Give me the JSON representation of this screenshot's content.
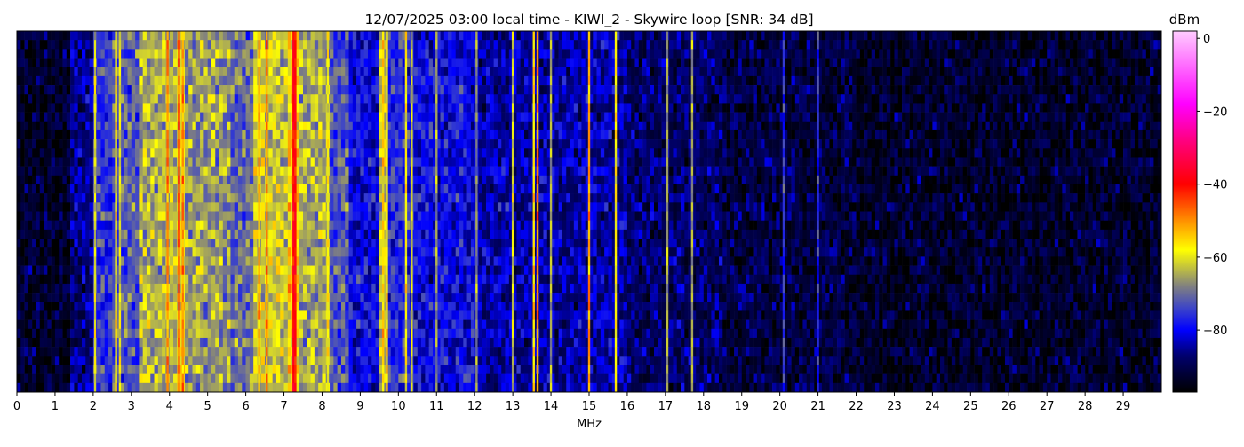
{
  "chart_data": {
    "type": "heatmap",
    "title": "12/07/2025 03:00 local time - KIWI_2 - Skywire loop [SNR: 34 dB]",
    "xlabel": "MHz",
    "ylabel": "",
    "xlim": [
      0,
      30
    ],
    "x_ticks": [
      "0",
      "1",
      "2",
      "3",
      "4",
      "5",
      "6",
      "7",
      "8",
      "9",
      "10",
      "11",
      "12",
      "13",
      "14",
      "15",
      "16",
      "17",
      "18",
      "19",
      "20",
      "21",
      "22",
      "23",
      "24",
      "25",
      "26",
      "27",
      "28",
      "29"
    ],
    "colorbar": {
      "label": "dBm",
      "range": [
        -97,
        2
      ],
      "ticks": [
        "0",
        "−20",
        "−40",
        "−60",
        "−80"
      ],
      "tick_values": [
        0,
        -20,
        -40,
        -60,
        -80
      ]
    },
    "colormap": [
      {
        "dbm": -97,
        "color": "#000000"
      },
      {
        "dbm": -87,
        "color": "#00006e"
      },
      {
        "dbm": -80,
        "color": "#0000ff"
      },
      {
        "dbm": -74,
        "color": "#3c44c8"
      },
      {
        "dbm": -68,
        "color": "#808080"
      },
      {
        "dbm": -63,
        "color": "#c0c040"
      },
      {
        "dbm": -58,
        "color": "#ffff00"
      },
      {
        "dbm": -50,
        "color": "#ff9000"
      },
      {
        "dbm": -40,
        "color": "#ff0000"
      },
      {
        "dbm": -28,
        "color": "#ff0080"
      },
      {
        "dbm": -18,
        "color": "#ff00ff"
      },
      {
        "dbm": 2,
        "color": "#ffccff"
      }
    ],
    "bands_mean_dbm": [
      {
        "from": 0,
        "to": 1.4,
        "dbm": -93
      },
      {
        "from": 1.4,
        "to": 2.0,
        "dbm": -86
      },
      {
        "from": 2.0,
        "to": 2.5,
        "dbm": -76
      },
      {
        "from": 2.5,
        "to": 3.2,
        "dbm": -72
      },
      {
        "from": 3.2,
        "to": 4.2,
        "dbm": -64
      },
      {
        "from": 4.2,
        "to": 4.4,
        "dbm": -58
      },
      {
        "from": 4.4,
        "to": 5.6,
        "dbm": -66
      },
      {
        "from": 5.6,
        "to": 6.2,
        "dbm": -70
      },
      {
        "from": 6.2,
        "to": 7.1,
        "dbm": -62
      },
      {
        "from": 7.1,
        "to": 7.4,
        "dbm": -56
      },
      {
        "from": 7.4,
        "to": 8.2,
        "dbm": -65
      },
      {
        "from": 8.2,
        "to": 8.7,
        "dbm": -72
      },
      {
        "from": 8.7,
        "to": 9.5,
        "dbm": -80
      },
      {
        "from": 9.5,
        "to": 9.7,
        "dbm": -63
      },
      {
        "from": 9.7,
        "to": 10.4,
        "dbm": -76
      },
      {
        "from": 10.4,
        "to": 12.1,
        "dbm": -80
      },
      {
        "from": 12.1,
        "to": 16.0,
        "dbm": -84
      },
      {
        "from": 16.0,
        "to": 18.5,
        "dbm": -88
      },
      {
        "from": 18.5,
        "to": 22.0,
        "dbm": -91
      },
      {
        "from": 22.0,
        "to": 30.0,
        "dbm": -93
      }
    ],
    "carriers": [
      {
        "mhz": 2.05,
        "dbm": -60
      },
      {
        "mhz": 2.6,
        "dbm": -58
      },
      {
        "mhz": 2.7,
        "dbm": -60
      },
      {
        "mhz": 3.95,
        "dbm": -50
      },
      {
        "mhz": 4.25,
        "dbm": -45
      },
      {
        "mhz": 4.35,
        "dbm": -50
      },
      {
        "mhz": 6.35,
        "dbm": -52
      },
      {
        "mhz": 6.55,
        "dbm": -50
      },
      {
        "mhz": 7.25,
        "dbm": -38
      },
      {
        "mhz": 7.3,
        "dbm": -40
      },
      {
        "mhz": 8.15,
        "dbm": -58
      },
      {
        "mhz": 9.6,
        "dbm": -55
      },
      {
        "mhz": 9.7,
        "dbm": -58
      },
      {
        "mhz": 10.2,
        "dbm": -58
      },
      {
        "mhz": 10.35,
        "dbm": -62
      },
      {
        "mhz": 11.0,
        "dbm": -66
      },
      {
        "mhz": 12.05,
        "dbm": -66
      },
      {
        "mhz": 13.0,
        "dbm": -62
      },
      {
        "mhz": 13.55,
        "dbm": -55
      },
      {
        "mhz": 13.65,
        "dbm": -50
      },
      {
        "mhz": 14.0,
        "dbm": -65
      },
      {
        "mhz": 15.0,
        "dbm": -50
      },
      {
        "mhz": 15.7,
        "dbm": -58
      },
      {
        "mhz": 17.05,
        "dbm": -66
      },
      {
        "mhz": 17.7,
        "dbm": -66
      },
      {
        "mhz": 20.1,
        "dbm": -76
      },
      {
        "mhz": 21.0,
        "dbm": -76
      }
    ]
  }
}
